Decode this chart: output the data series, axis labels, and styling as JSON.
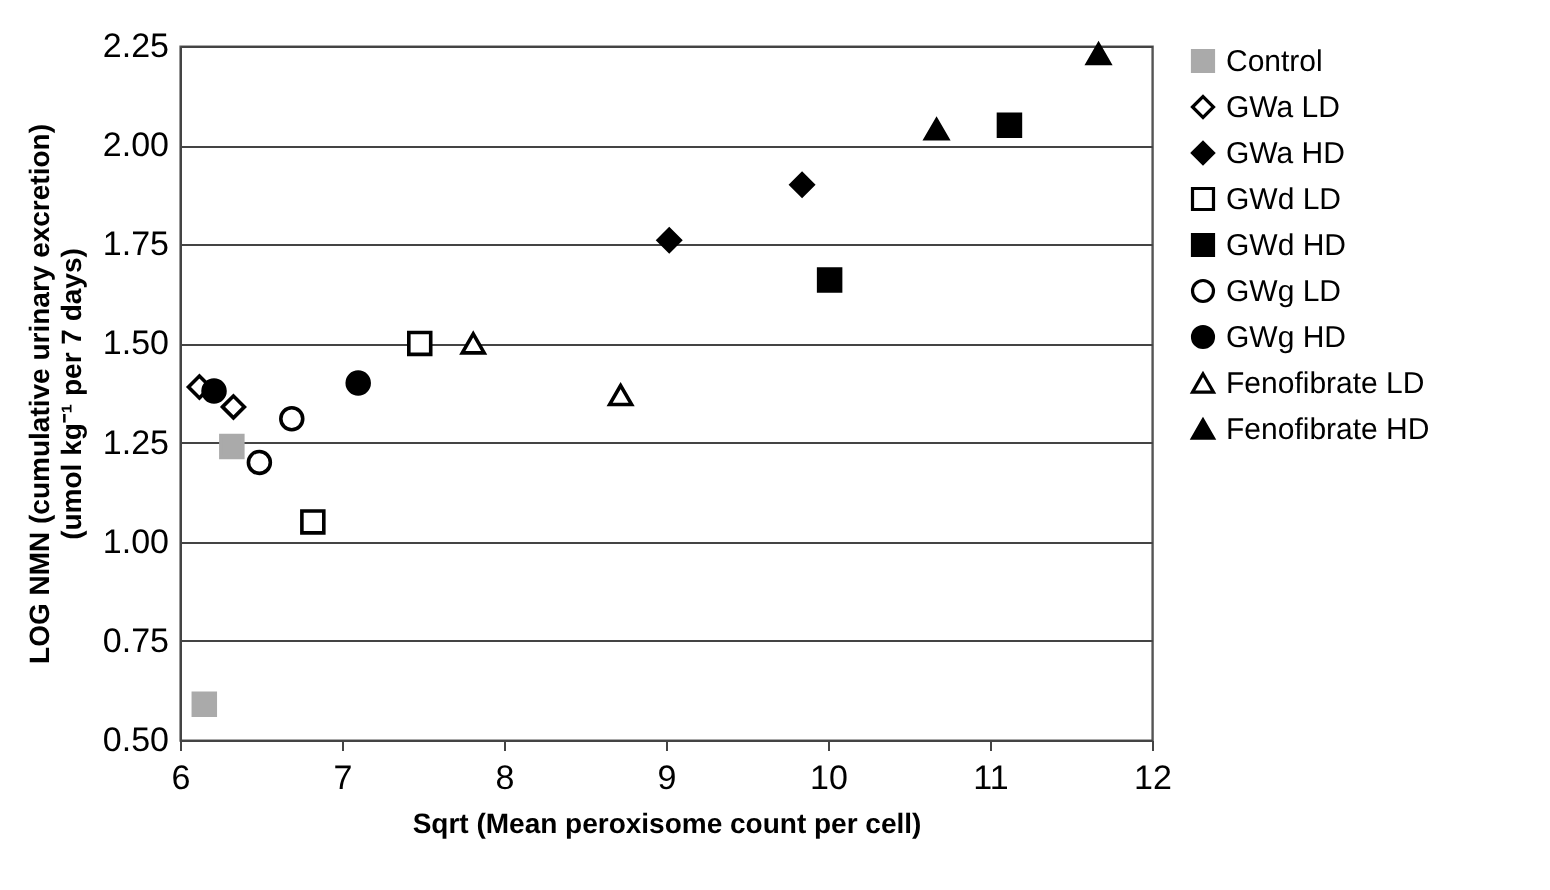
{
  "chart_data": {
    "type": "scatter",
    "xlabel": "Sqrt (Mean peroxisome count per cell)",
    "ylabel": "LOG NMN (cumulative urinary excretion)\n(umol kg⁻¹ per 7 days)",
    "xlim": [
      6,
      12
    ],
    "xticks": [
      6,
      7,
      8,
      9,
      10,
      11,
      12
    ],
    "ylim": [
      0.5,
      2.25
    ],
    "yticks": [
      {
        "value": 0.5,
        "label": "0.50"
      },
      {
        "value": 0.75,
        "label": "0.75"
      },
      {
        "value": 1.0,
        "label": "1.00"
      },
      {
        "value": 1.25,
        "label": "1.25"
      },
      {
        "value": 1.5,
        "label": "1.50"
      },
      {
        "value": 1.75,
        "label": "1.75"
      },
      {
        "value": 2.0,
        "label": "2.00"
      },
      {
        "value": 2.25,
        "label": "2.25"
      }
    ],
    "grid": "y",
    "legend": "right",
    "series": [
      {
        "name": "Control",
        "color": "#aaaaaa",
        "marker": "square",
        "x": [
          6.15,
          6.32
        ],
        "values": [
          0.59,
          1.24
        ]
      },
      {
        "name": "GWa LD",
        "color": "#ffffff",
        "marker": "diamond",
        "x": [
          6.12,
          6.33
        ],
        "values": [
          1.39,
          1.34
        ]
      },
      {
        "name": "GWa HD",
        "color": "#000000",
        "marker": "diamond",
        "x": [
          9.02,
          9.84
        ],
        "values": [
          1.76,
          1.9
        ]
      },
      {
        "name": "GWd LD",
        "color": "#ffffff",
        "marker": "square",
        "x": [
          7.48,
          6.82
        ],
        "values": [
          1.5,
          1.05
        ]
      },
      {
        "name": "GWd HD",
        "color": "#000000",
        "marker": "square",
        "x": [
          10.01,
          11.12
        ],
        "values": [
          1.66,
          2.05
        ]
      },
      {
        "name": "GWg LD",
        "color": "#ffffff",
        "marker": "circle",
        "x": [
          6.69,
          6.49
        ],
        "values": [
          1.31,
          1.2
        ]
      },
      {
        "name": "GWg HD",
        "color": "#000000",
        "marker": "circle",
        "x": [
          6.21,
          7.1
        ],
        "values": [
          1.38,
          1.4
        ]
      },
      {
        "name": "Fenofibrate LD",
        "color": "#ffffff",
        "marker": "triangle",
        "x": [
          7.81,
          8.72
        ],
        "values": [
          1.5,
          1.37
        ]
      },
      {
        "name": "Fenofibrate HD",
        "color": "#000000",
        "marker": "triangle",
        "x": [
          10.67,
          11.67
        ],
        "values": [
          2.04,
          2.23
        ]
      }
    ]
  }
}
